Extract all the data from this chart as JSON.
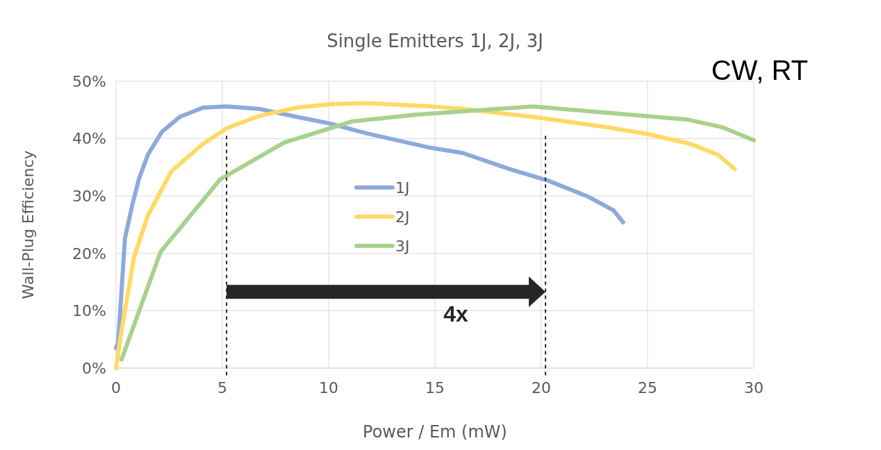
{
  "chart_data": {
    "type": "line",
    "title": "Single Emitters 1J, 2J, 3J",
    "xlabel": "Power / Em (mW)",
    "ylabel": "Wall-Plug Efficiency",
    "xlim": [
      0,
      30
    ],
    "xticks": [
      0,
      5,
      10,
      15,
      20,
      25,
      30
    ],
    "ylim": [
      0,
      50
    ],
    "yticks": [
      {
        "value": 0,
        "label": "0%"
      },
      {
        "value": 10,
        "label": "10%"
      },
      {
        "value": 20,
        "label": "20%"
      },
      {
        "value": 30,
        "label": "30%"
      },
      {
        "value": 40,
        "label": "40%"
      },
      {
        "value": 50,
        "label": "50%"
      }
    ],
    "grid": true,
    "legend": "center",
    "marker": "none",
    "line_style": "solid",
    "series": [
      {
        "name": "1J",
        "color": "#8eaadb",
        "x": [
          0,
          0.1,
          0.42,
          0.75,
          1.08,
          1.5,
          2.16,
          3.0,
          4.1,
          5.2,
          6.7,
          8.5,
          10.1,
          11.8,
          14.8,
          16.3,
          18.5,
          20.3,
          22.2,
          23.4,
          23.85
        ],
        "values": [
          3.5,
          4.5,
          22.6,
          28.2,
          33,
          37.2,
          41.2,
          43.8,
          45.4,
          45.6,
          45.2,
          43.8,
          42.6,
          40.9,
          38.4,
          37.5,
          34.7,
          32.7,
          29.9,
          27.5,
          25.4
        ]
      },
      {
        "name": "2J",
        "color": "#ffd966",
        "x": [
          0,
          0.2,
          0.85,
          1.5,
          2.6,
          4.1,
          5.2,
          6.7,
          8.5,
          10.1,
          11.8,
          14.8,
          16.3,
          19.6,
          22.9,
          25.0,
          27.0,
          28.3,
          29.1
        ],
        "values": [
          0,
          5.2,
          19.4,
          26.6,
          34.3,
          39.1,
          41.8,
          43.9,
          45.4,
          46,
          46.2,
          45.6,
          45.2,
          43.8,
          42.1,
          40.8,
          39.1,
          37.2,
          34.7
        ]
      },
      {
        "name": "3J",
        "color": "#a9d18e",
        "x": [
          0.26,
          2.1,
          4.9,
          7.9,
          11.1,
          14.15,
          19.6,
          26.9,
          28.5,
          30
        ],
        "values": [
          1.5,
          20.3,
          32.9,
          39.3,
          43,
          44.2,
          45.6,
          43.3,
          42,
          39.7
        ]
      }
    ],
    "ref_lines": [
      {
        "axis": "x",
        "value": 5.2,
        "color": "#262626",
        "line_style": "dashed"
      },
      {
        "axis": "x",
        "value": 20.2,
        "color": "#262626",
        "line_style": "dashed"
      }
    ],
    "annotations": [
      "4x",
      "CW, RT"
    ]
  }
}
